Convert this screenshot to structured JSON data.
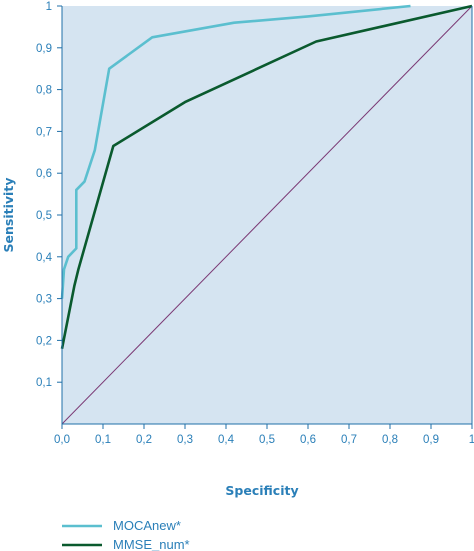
{
  "chart_data": {
    "type": "line",
    "xlabel": "Specificity",
    "ylabel": "Sensitivity",
    "xlim": [
      0,
      1
    ],
    "ylim": [
      0,
      1
    ],
    "x_ticks": [
      "0,0",
      "0,1",
      "0,2",
      "0,3",
      "0,4",
      "0,5",
      "0,6",
      "0,7",
      "0,8",
      "0,9",
      "1"
    ],
    "y_ticks": [
      "0,1",
      "0,2",
      "0,3",
      "0,4",
      "0,5",
      "0,6",
      "0,7",
      "0,8",
      "0,9",
      "1"
    ],
    "grid": false,
    "legend_position": "bottom-left",
    "background_color": "#d5e4f1",
    "series": [
      {
        "name": "MOCAnew*",
        "color": "#5bbfcf",
        "points": [
          [
            0.0,
            0.3
          ],
          [
            0.005,
            0.37
          ],
          [
            0.015,
            0.4
          ],
          [
            0.035,
            0.42
          ],
          [
            0.035,
            0.47
          ],
          [
            0.035,
            0.56
          ],
          [
            0.055,
            0.58
          ],
          [
            0.08,
            0.655
          ],
          [
            0.115,
            0.85
          ],
          [
            0.22,
            0.925
          ],
          [
            0.42,
            0.96
          ],
          [
            0.6,
            0.975
          ],
          [
            0.85,
            1.0
          ]
        ]
      },
      {
        "name": "MMSE_num*",
        "color": "#0a5a2e",
        "points": [
          [
            0.0,
            0.18
          ],
          [
            0.03,
            0.33
          ],
          [
            0.04,
            0.37
          ],
          [
            0.125,
            0.665
          ],
          [
            0.3,
            0.77
          ],
          [
            0.62,
            0.915
          ],
          [
            1.0,
            1.0
          ]
        ]
      },
      {
        "name": "",
        "color": "#7b3a75",
        "points": [
          [
            0.0,
            0.0
          ],
          [
            1.0,
            1.0
          ]
        ]
      }
    ]
  },
  "legend": [
    {
      "label": "MOCAnew*",
      "color": "#5bbfcf"
    },
    {
      "label": "MMSE_num*",
      "color": "#0a5a2e"
    }
  ]
}
